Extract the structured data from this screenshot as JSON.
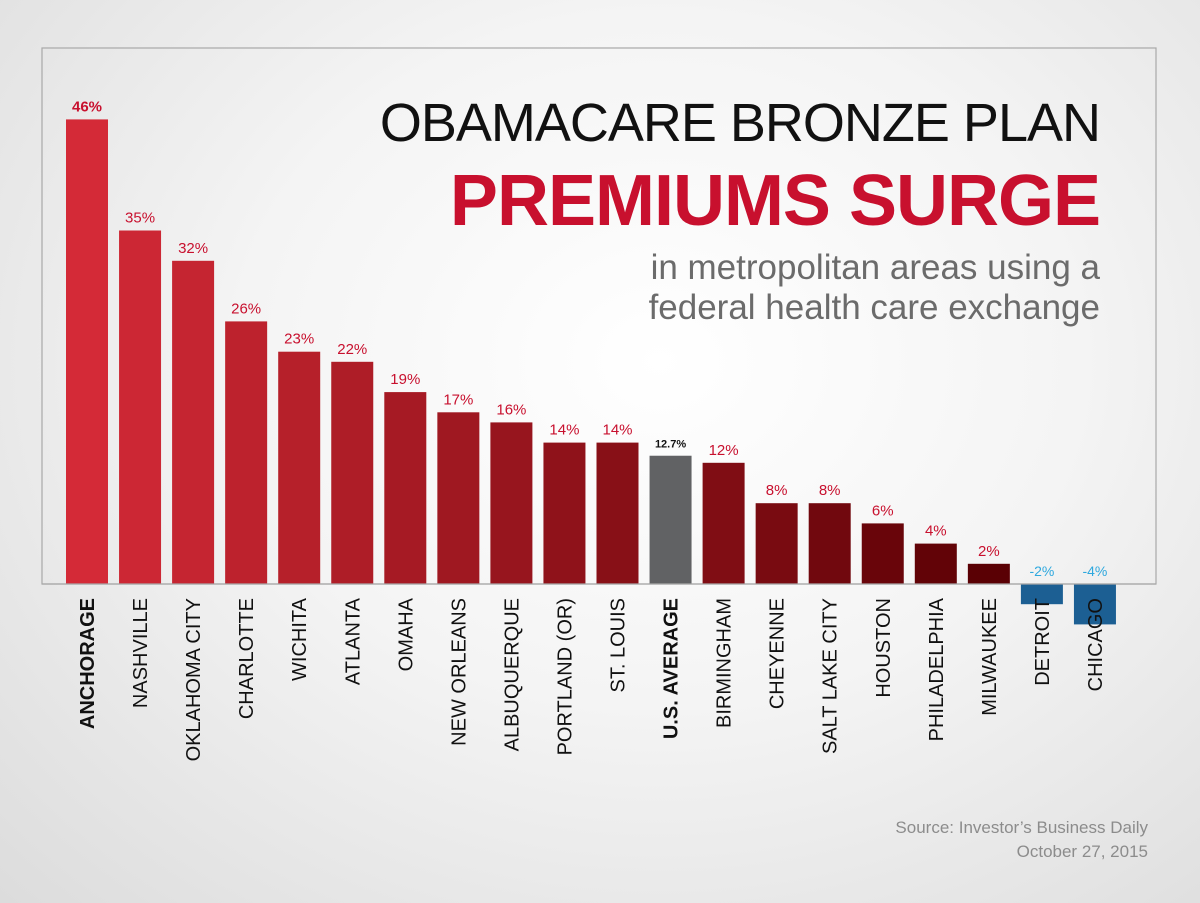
{
  "title": "OBAMACARE BRONZE PLAN",
  "headline": "PREMIUMS SURGE",
  "subtitle_line1": "in metropolitan areas using a",
  "subtitle_line2": "federal health care exchange",
  "source": "Source: Investor’s Business Daily",
  "date": "October 27, 2015",
  "chart_data": {
    "type": "bar",
    "title": "OBAMACARE BRONZE PLAN PREMIUMS SURGE",
    "xlabel": "",
    "ylabel": "",
    "ylim": [
      -5,
      50
    ],
    "grid": false,
    "categories": [
      "ANCHORAGE",
      "NASHVILLE",
      "OKLAHOMA CITY",
      "CHARLOTTE",
      "WICHITA",
      "ATLANTA",
      "OMAHA",
      "NEW ORLEANS",
      "ALBUQUERQUE",
      "PORTLAND (OR)",
      "ST. LOUIS",
      "U.S. AVERAGE",
      "BIRMINGHAM",
      "CHEYENNE",
      "SALT LAKE CITY",
      "HOUSTON",
      "PHILADELPHIA",
      "MILWAUKEE",
      "DETROIT",
      "CHICAGO"
    ],
    "values": [
      46,
      35,
      32,
      26,
      23,
      22,
      19,
      17,
      16,
      14,
      14,
      12.7,
      12,
      8,
      8,
      6,
      4,
      2,
      -2,
      -4
    ],
    "value_labels": [
      "46%",
      "35%",
      "32%",
      "26%",
      "23%",
      "22%",
      "19%",
      "17%",
      "16%",
      "14%",
      "14%",
      "12.7%",
      "12%",
      "8%",
      "8%",
      "6%",
      "4%",
      "2%",
      "-2%",
      "-4%"
    ],
    "colors": {
      "positive_start": "#d42a37",
      "positive_end": "#5a0004",
      "average": "#616264",
      "negative": "#1c5f93",
      "negative_label": "#2ea8de",
      "highlight_label": "#c8102e",
      "average_label": "#111111"
    }
  }
}
